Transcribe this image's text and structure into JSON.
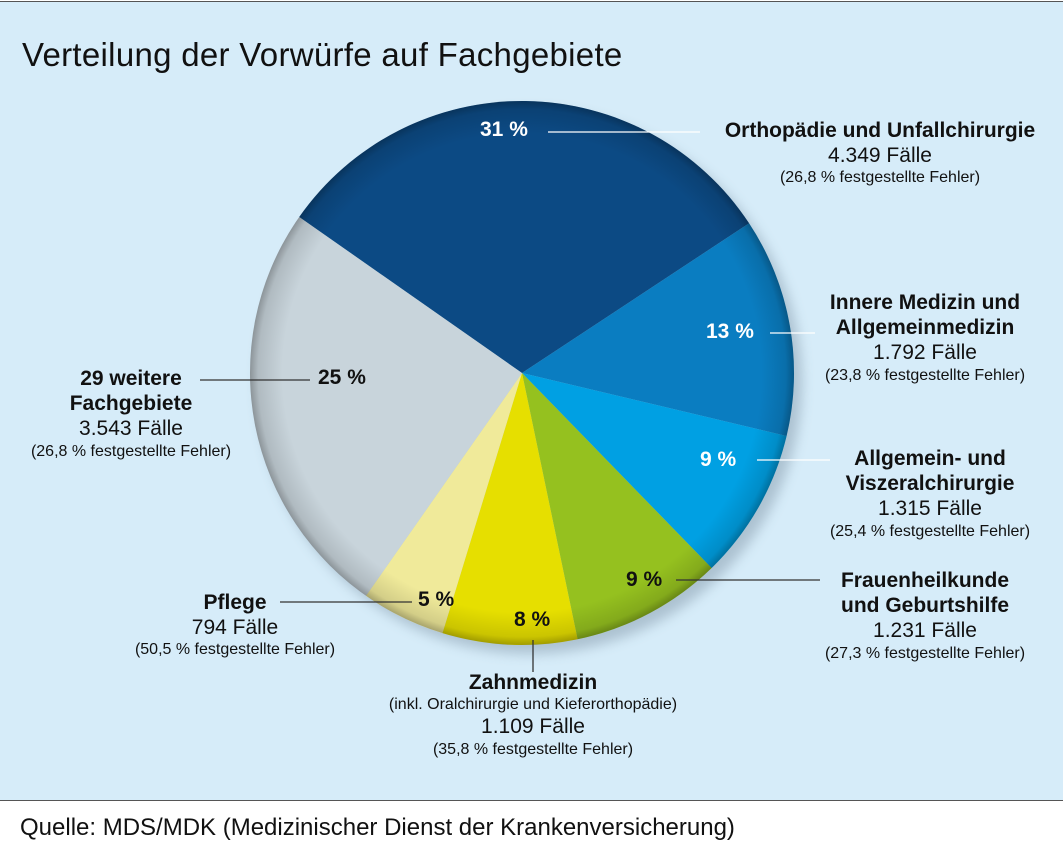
{
  "title": "Verteilung der Vorwürfe auf Fachgebiete",
  "source": "Quelle: MDS/MDK (Medizinischer Dienst der Krankenversicherung)",
  "background_color": "#d6ecf9",
  "chart_data": {
    "type": "pie",
    "title": "Verteilung der Vorwürfe auf Fachgebiete",
    "start_angle_deg": -55,
    "direction": "clockwise",
    "slices": [
      {
        "name": "Orthopädie und Unfallchirurgie",
        "name_lines": [
          "Orthopädie und Unfallchirurgie"
        ],
        "value": 31,
        "percent_label": "31 %",
        "cases": "4.349 Fälle",
        "errors": "(26,8 % festgestellte Fehler)",
        "color": "#0c4a84",
        "pct_color": "#ffffff"
      },
      {
        "name": "Innere Medizin und Allgemeinmedizin",
        "name_lines": [
          "Innere Medizin und",
          "Allgemeinmedizin"
        ],
        "value": 13,
        "percent_label": "13 %",
        "cases": "1.792 Fälle",
        "errors": "(23,8 % festgestellte Fehler)",
        "color": "#0a7dc1",
        "pct_color": "#ffffff"
      },
      {
        "name": "Allgemein- und Viszeralchirurgie",
        "name_lines": [
          "Allgemein- und",
          "Viszeralchirurgie"
        ],
        "value": 9,
        "percent_label": "9 %",
        "cases": "1.315 Fälle",
        "errors": "(25,4 % festgestellte Fehler)",
        "color": "#00a0e3",
        "pct_color": "#ffffff"
      },
      {
        "name": "Frauenheilkunde und Geburtshilfe",
        "name_lines": [
          "Frauenheilkunde",
          "und Geburtshilfe"
        ],
        "value": 9,
        "percent_label": "9 %",
        "cases": "1.231 Fälle",
        "errors": "(27,3 % festgestellte Fehler)",
        "color": "#95c11f",
        "pct_color": "#111111"
      },
      {
        "name": "Zahnmedizin",
        "name_lines": [
          "Zahnmedizin"
        ],
        "note": "(inkl. Oralchirurgie und Kieferorthopädie)",
        "value": 8,
        "percent_label": "8 %",
        "cases": "1.109 Fälle",
        "errors": "(35,8 % festgestellte Fehler)",
        "color": "#e6df00",
        "pct_color": "#111111"
      },
      {
        "name": "Pflege",
        "name_lines": [
          "Pflege"
        ],
        "value": 5,
        "percent_label": "5 %",
        "cases": "794 Fälle",
        "errors": "(50,5 % festgestellte Fehler)",
        "color": "#f0ea9a",
        "pct_color": "#111111"
      },
      {
        "name": "29 weitere Fachgebiete",
        "name_lines": [
          "29 weitere",
          "Fachgebiete"
        ],
        "value": 25,
        "percent_label": "25 %",
        "cases": "3.543 Fälle",
        "errors": "(26,8 % festgestellte Fehler)",
        "color": "#c8d4db",
        "pct_color": "#111111"
      }
    ]
  }
}
